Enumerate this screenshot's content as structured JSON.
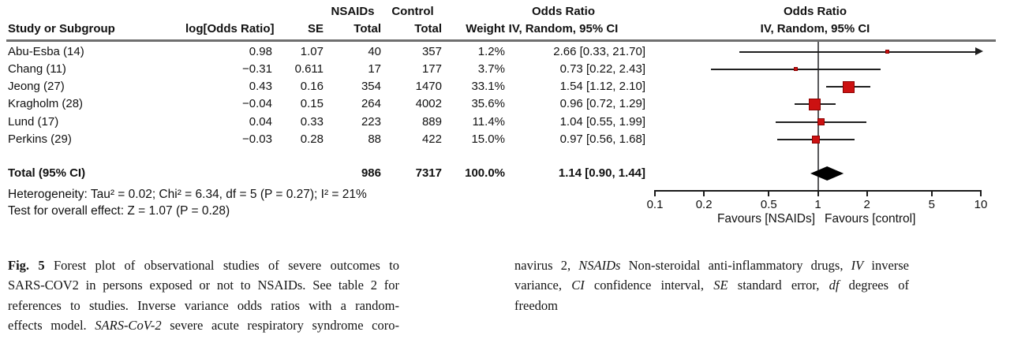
{
  "figure": {
    "headers": {
      "nsaids_group": "NSAIDs",
      "control_group": "Control",
      "odds_ratio_col": "Odds Ratio",
      "odds_ratio_plot": "Odds Ratio",
      "study": "Study or Subgroup",
      "log_odds_ratio": "log[Odds Ratio]",
      "se": "SE",
      "total_nsaids": "Total",
      "total_control": "Total",
      "weight": "Weight",
      "iv_random_col": "IV, Random, 95% CI",
      "iv_random_plot": "IV, Random, 95% CI"
    },
    "heterogeneity": "Heterogeneity: Tau² = 0.02; Chi² = 6.34, df = 5 (P = 0.27); I² = 21%",
    "overall_effect": "Test for overall effect: Z = 1.07 (P = 0.28)"
  },
  "chart_data": {
    "type": "forest",
    "title": "Odds Ratio — IV, Random, 95% CI",
    "x_scale": "log10",
    "xlim": [
      0.1,
      10
    ],
    "x_ticks": [
      "0.1",
      "0.2",
      "0.5",
      "1",
      "2",
      "5",
      "10"
    ],
    "favours_left": "Favours [NSAIDs]",
    "favours_right": "Favours [control]",
    "studies": [
      {
        "name": "Abu-Esba (14)",
        "log_or": "0.98",
        "se": "1.07",
        "nsaids_total": "40",
        "control_total": "357",
        "weight": "1.2%",
        "or_text": "2.66 [0.33, 21.70]",
        "or": 2.66,
        "ci_low": 0.33,
        "ci_high": 21.7,
        "weight_pct": 1.2
      },
      {
        "name": "Chang (11)",
        "log_or": "−0.31",
        "se": "0.611",
        "nsaids_total": "17",
        "control_total": "177",
        "weight": "3.7%",
        "or_text": "0.73 [0.22, 2.43]",
        "or": 0.73,
        "ci_low": 0.22,
        "ci_high": 2.43,
        "weight_pct": 3.7
      },
      {
        "name": "Jeong (27)",
        "log_or": "0.43",
        "se": "0.16",
        "nsaids_total": "354",
        "control_total": "1470",
        "weight": "33.1%",
        "or_text": "1.54 [1.12, 2.10]",
        "or": 1.54,
        "ci_low": 1.12,
        "ci_high": 2.1,
        "weight_pct": 33.1
      },
      {
        "name": "Kragholm (28)",
        "log_or": "−0.04",
        "se": "0.15",
        "nsaids_total": "264",
        "control_total": "4002",
        "weight": "35.6%",
        "or_text": "0.96 [0.72, 1.29]",
        "or": 0.96,
        "ci_low": 0.72,
        "ci_high": 1.29,
        "weight_pct": 35.6
      },
      {
        "name": "Lund (17)",
        "log_or": "0.04",
        "se": "0.33",
        "nsaids_total": "223",
        "control_total": "889",
        "weight": "11.4%",
        "or_text": "1.04 [0.55, 1.99]",
        "or": 1.04,
        "ci_low": 0.55,
        "ci_high": 1.99,
        "weight_pct": 11.4
      },
      {
        "name": "Perkins (29)",
        "log_or": "−0.03",
        "se": "0.28",
        "nsaids_total": "88",
        "control_total": "422",
        "weight": "15.0%",
        "or_text": "0.97 [0.56, 1.68]",
        "or": 0.97,
        "ci_low": 0.56,
        "ci_high": 1.68,
        "weight_pct": 15.0
      }
    ],
    "total": {
      "label": "Total (95% CI)",
      "nsaids_total": "986",
      "control_total": "7317",
      "weight": "100.0%",
      "or_text": "1.14 [0.90, 1.44]",
      "or": 1.14,
      "ci_low": 0.9,
      "ci_high": 1.44
    },
    "colors": {
      "marker": "#cc1111",
      "marker_border": "#8b0000",
      "diamond": "#000000",
      "ci_line": "#1f1f1f",
      "axis": "#1a1a1a",
      "rule": "#6f6f6f",
      "center_line": "#58585a"
    }
  },
  "caption": {
    "left_lines": [
      [
        {
          "s": "b",
          "t": "Fig. 5"
        },
        {
          "s": "n",
          "t": " Forest plot of observational studies of severe outcomes to"
        }
      ],
      [
        {
          "s": "n",
          "t": "SARS-COV2 in persons exposed or not to NSAIDs. See table 2 for"
        }
      ],
      [
        {
          "s": "n",
          "t": "references to studies. Inverse variance odds ratios with a random-"
        }
      ],
      [
        {
          "s": "n",
          "t": "effects model. "
        },
        {
          "s": "i",
          "t": "SARS-CoV-2"
        },
        {
          "s": "n",
          "t": " severe acute respiratory syndrome coro-"
        }
      ]
    ],
    "right_lines": [
      [
        {
          "s": "n",
          "t": "navirus 2, "
        },
        {
          "s": "i",
          "t": "NSAIDs"
        },
        {
          "s": "n",
          "t": " Non-steroidal anti-inflammatory drugs, "
        },
        {
          "s": "i",
          "t": "IV"
        },
        {
          "s": "n",
          "t": " inverse"
        }
      ],
      [
        {
          "s": "n",
          "t": "variance, "
        },
        {
          "s": "i",
          "t": "CI"
        },
        {
          "s": "n",
          "t": " confidence interval, "
        },
        {
          "s": "i",
          "t": "SE"
        },
        {
          "s": "n",
          "t": " standard error, "
        },
        {
          "s": "i",
          "t": "df"
        },
        {
          "s": "n",
          "t": " degrees of"
        }
      ],
      [
        {
          "s": "n",
          "t": "freedom"
        }
      ]
    ]
  }
}
